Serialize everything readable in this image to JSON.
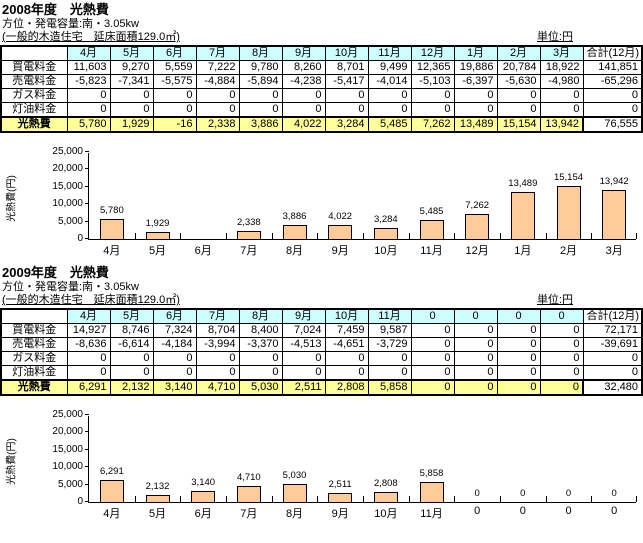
{
  "colors": {
    "header_fill": "#CCFFFF",
    "highlight_fill": "#FFFF99",
    "bar_fill": "#FFCC99",
    "border": "#000000"
  },
  "sections": [
    {
      "title": "2008年度　光熱費",
      "subtitle_capacity": "方位・発電容量:南・3.05kw",
      "subtitle_building": "(一般的木造住宅　延床面積129.0㎡)",
      "unit_label": "単位:円",
      "table": {
        "corner": "",
        "columns": [
          "4月",
          "5月",
          "6月",
          "7月",
          "8月",
          "9月",
          "10月",
          "11月",
          "12月",
          "1月",
          "2月",
          "3月"
        ],
        "total_header": "合計(12月)",
        "rows": [
          {
            "label": "買電料金",
            "values": [
              "11,603",
              "9,270",
              "5,559",
              "7,222",
              "9,780",
              "8,260",
              "8,701",
              "9,499",
              "12,365",
              "19,886",
              "20,784",
              "18,922"
            ],
            "total": "141,851",
            "highlight": false
          },
          {
            "label": "売電料金",
            "values": [
              "-5,823",
              "-7,341",
              "-5,575",
              "-4,884",
              "-5,894",
              "-4,238",
              "-5,417",
              "-4,014",
              "-5,103",
              "-6,397",
              "-5,630",
              "-4,980"
            ],
            "total": "-65,296",
            "highlight": false
          },
          {
            "label": "ガス料金",
            "values": [
              "0",
              "0",
              "0",
              "0",
              "0",
              "0",
              "0",
              "0",
              "0",
              "0",
              "0",
              "0"
            ],
            "total": "0",
            "highlight": false
          },
          {
            "label": "灯油料金",
            "values": [
              "0",
              "0",
              "0",
              "0",
              "0",
              "0",
              "0",
              "0",
              "0",
              "0",
              "0",
              "0"
            ],
            "total": "0",
            "highlight": false
          },
          {
            "label": "光熱費",
            "values": [
              "5,780",
              "1,929",
              "-16",
              "2,338",
              "3,886",
              "4,022",
              "3,284",
              "5,485",
              "7,262",
              "13,489",
              "15,154",
              "13,942"
            ],
            "total": "76,555",
            "highlight": true
          }
        ]
      }
    },
    {
      "title": "2009年度　光熱費",
      "subtitle_capacity": "方位・発電容量:南・3.05kw",
      "subtitle_building": "(一般的木造住宅　延床面積129.0㎡)",
      "unit_label": "単位:円",
      "table": {
        "corner": "",
        "columns": [
          "4月",
          "5月",
          "6月",
          "7月",
          "8月",
          "9月",
          "10月",
          "11月",
          "0",
          "0",
          "0",
          "0"
        ],
        "total_header": "合計(12月)",
        "rows": [
          {
            "label": "買電料金",
            "values": [
              "14,927",
              "8,746",
              "7,324",
              "8,704",
              "8,400",
              "7,024",
              "7,459",
              "9,587",
              "0",
              "0",
              "0",
              "0"
            ],
            "total": "72,171",
            "highlight": false
          },
          {
            "label": "売電料金",
            "values": [
              "-8,636",
              "-6,614",
              "-4,184",
              "-3,994",
              "-3,370",
              "-4,513",
              "-4,651",
              "-3,729",
              "0",
              "0",
              "0",
              "0"
            ],
            "total": "-39,691",
            "highlight": false
          },
          {
            "label": "ガス料金",
            "values": [
              "0",
              "0",
              "0",
              "0",
              "0",
              "0",
              "0",
              "0",
              "0",
              "0",
              "0",
              "0"
            ],
            "total": "0",
            "highlight": false
          },
          {
            "label": "灯油料金",
            "values": [
              "0",
              "0",
              "0",
              "0",
              "0",
              "0",
              "0",
              "0",
              "0",
              "0",
              "0",
              "0"
            ],
            "total": "0",
            "highlight": false
          },
          {
            "label": "光熱費",
            "values": [
              "6,291",
              "2,132",
              "3,140",
              "4,710",
              "5,030",
              "2,511",
              "2,808",
              "5,858",
              "0",
              "0",
              "0",
              "0"
            ],
            "total": "32,480",
            "highlight": true
          }
        ]
      }
    }
  ],
  "chart_data": [
    {
      "type": "bar",
      "title": "2008年度 光熱費",
      "categories": [
        "4月",
        "5月",
        "6月",
        "7月",
        "8月",
        "9月",
        "10月",
        "11月",
        "12月",
        "1月",
        "2月",
        "3月"
      ],
      "values": [
        5780,
        1929,
        -16,
        2338,
        3886,
        4022,
        3284,
        5485,
        7262,
        13489,
        15154,
        13942
      ],
      "labels": [
        "5,780",
        "1,929",
        "",
        "2,338",
        "3,886",
        "4,022",
        "3,284",
        "5,485",
        "7,262",
        "13,489",
        "15,154",
        "13,942"
      ],
      "xlabel": "",
      "ylabel": "光熱費(円)",
      "ylim": [
        0,
        25000
      ],
      "yticks": [
        0,
        5000,
        10000,
        15000,
        20000,
        25000
      ],
      "ytick_labels": [
        "0",
        "5,000",
        "10,000",
        "15,000",
        "20,000",
        "25,000"
      ],
      "grid": false,
      "legend": "none",
      "bar_color": "#FFCC99"
    },
    {
      "type": "bar",
      "title": "2009年度 光熱費",
      "categories": [
        "4月",
        "5月",
        "6月",
        "7月",
        "8月",
        "9月",
        "10月",
        "11月",
        "0",
        "0",
        "0",
        "0"
      ],
      "values": [
        6291,
        2132,
        3140,
        4710,
        5030,
        2511,
        2808,
        5858,
        0,
        0,
        0,
        0
      ],
      "labels": [
        "6,291",
        "2,132",
        "3,140",
        "4,710",
        "5,030",
        "2,511",
        "2,808",
        "5,858",
        "0",
        "0",
        "0",
        "0"
      ],
      "xlabel": "",
      "ylabel": "光熱費(円)",
      "ylim": [
        0,
        25000
      ],
      "yticks": [
        0,
        5000,
        10000,
        15000,
        20000,
        25000
      ],
      "ytick_labels": [
        "0",
        "5,000",
        "10,000",
        "15,000",
        "20,000",
        "25,000"
      ],
      "grid": false,
      "legend": "none",
      "bar_color": "#FFCC99"
    }
  ]
}
